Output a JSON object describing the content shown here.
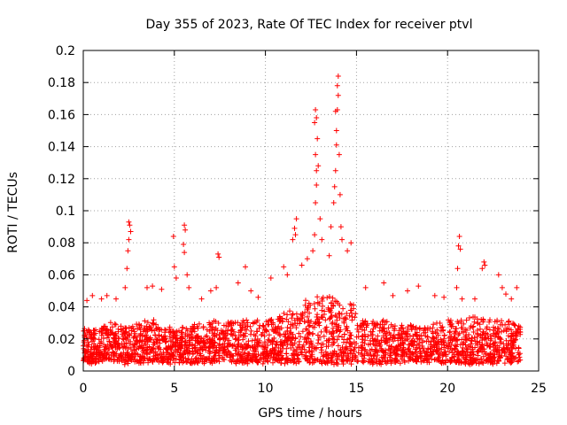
{
  "chart_data": {
    "type": "scatter",
    "title": "Day 355 of 2023, Rate Of TEC Index for receiver ptvl",
    "xlabel": "GPS time / hours",
    "ylabel": "ROTI / TECUs",
    "xlim": [
      0,
      25
    ],
    "ylim": [
      0,
      0.2
    ],
    "xticks": [
      0,
      5,
      10,
      15,
      20,
      25
    ],
    "yticks": [
      0,
      0.02,
      0.04,
      0.06,
      0.08,
      0.1,
      0.12,
      0.14,
      0.16,
      0.18,
      0.2
    ],
    "grid": true,
    "marker": "+",
    "color": "#ff0000",
    "series": [
      {
        "name": "ROTI",
        "points": [
          [
            0.2,
            0.044
          ],
          [
            0.5,
            0.047
          ],
          [
            1.0,
            0.045
          ],
          [
            1.3,
            0.047
          ],
          [
            1.8,
            0.045
          ],
          [
            2.3,
            0.052
          ],
          [
            2.4,
            0.064
          ],
          [
            2.45,
            0.075
          ],
          [
            2.5,
            0.082
          ],
          [
            2.5,
            0.093
          ],
          [
            2.55,
            0.091
          ],
          [
            2.6,
            0.087
          ],
          [
            3.5,
            0.052
          ],
          [
            3.8,
            0.053
          ],
          [
            4.3,
            0.051
          ],
          [
            4.95,
            0.084
          ],
          [
            5.0,
            0.065
          ],
          [
            5.1,
            0.058
          ],
          [
            5.5,
            0.079
          ],
          [
            5.55,
            0.091
          ],
          [
            5.6,
            0.088
          ],
          [
            5.55,
            0.074
          ],
          [
            5.7,
            0.06
          ],
          [
            5.8,
            0.052
          ],
          [
            6.5,
            0.045
          ],
          [
            7.0,
            0.05
          ],
          [
            7.4,
            0.073
          ],
          [
            7.45,
            0.071
          ],
          [
            7.3,
            0.052
          ],
          [
            8.5,
            0.055
          ],
          [
            8.9,
            0.065
          ],
          [
            9.2,
            0.05
          ],
          [
            9.6,
            0.046
          ],
          [
            10.3,
            0.058
          ],
          [
            11.0,
            0.065
          ],
          [
            11.2,
            0.06
          ],
          [
            11.5,
            0.082
          ],
          [
            11.6,
            0.089
          ],
          [
            11.7,
            0.095
          ],
          [
            11.65,
            0.085
          ],
          [
            12.0,
            0.066
          ],
          [
            12.3,
            0.07
          ],
          [
            12.6,
            0.075
          ],
          [
            12.7,
            0.085
          ],
          [
            12.75,
            0.105
          ],
          [
            12.8,
            0.116
          ],
          [
            12.8,
            0.125
          ],
          [
            12.75,
            0.135
          ],
          [
            12.85,
            0.145
          ],
          [
            12.7,
            0.155
          ],
          [
            12.75,
            0.163
          ],
          [
            12.8,
            0.158
          ],
          [
            12.9,
            0.128
          ],
          [
            13.0,
            0.095
          ],
          [
            13.1,
            0.082
          ],
          [
            13.5,
            0.072
          ],
          [
            13.6,
            0.09
          ],
          [
            13.75,
            0.105
          ],
          [
            13.8,
            0.115
          ],
          [
            13.85,
            0.125
          ],
          [
            13.9,
            0.141
          ],
          [
            13.9,
            0.15
          ],
          [
            13.85,
            0.162
          ],
          [
            13.95,
            0.163
          ],
          [
            14.0,
            0.172
          ],
          [
            13.95,
            0.178
          ],
          [
            14.0,
            0.184
          ],
          [
            14.05,
            0.135
          ],
          [
            14.1,
            0.11
          ],
          [
            14.15,
            0.09
          ],
          [
            14.2,
            0.082
          ],
          [
            14.5,
            0.075
          ],
          [
            14.7,
            0.08
          ],
          [
            15.5,
            0.052
          ],
          [
            16.5,
            0.055
          ],
          [
            17.0,
            0.047
          ],
          [
            17.8,
            0.05
          ],
          [
            18.4,
            0.053
          ],
          [
            19.3,
            0.047
          ],
          [
            19.8,
            0.046
          ],
          [
            20.5,
            0.052
          ],
          [
            20.55,
            0.064
          ],
          [
            20.6,
            0.078
          ],
          [
            20.65,
            0.084
          ],
          [
            20.7,
            0.076
          ],
          [
            20.8,
            0.045
          ],
          [
            21.5,
            0.045
          ],
          [
            21.9,
            0.064
          ],
          [
            22.0,
            0.068
          ],
          [
            22.05,
            0.066
          ],
          [
            22.8,
            0.06
          ],
          [
            23.0,
            0.052
          ],
          [
            23.2,
            0.048
          ],
          [
            23.5,
            0.045
          ],
          [
            23.8,
            0.052
          ]
        ]
      }
    ],
    "background": {
      "description_values": "dense ROTI background 0.005-0.035 TECU/s over 0-24 h",
      "x_range": [
        0,
        24
      ],
      "y_floor": 0.004,
      "y_base": [
        0.025,
        0.028,
        0.027,
        0.03,
        0.026,
        0.026,
        0.028,
        0.03,
        0.03,
        0.03,
        0.032,
        0.036,
        0.045,
        0.045,
        0.042,
        0.03,
        0.03,
        0.028,
        0.027,
        0.028,
        0.03,
        0.032,
        0.03,
        0.03,
        0.03
      ]
    }
  }
}
